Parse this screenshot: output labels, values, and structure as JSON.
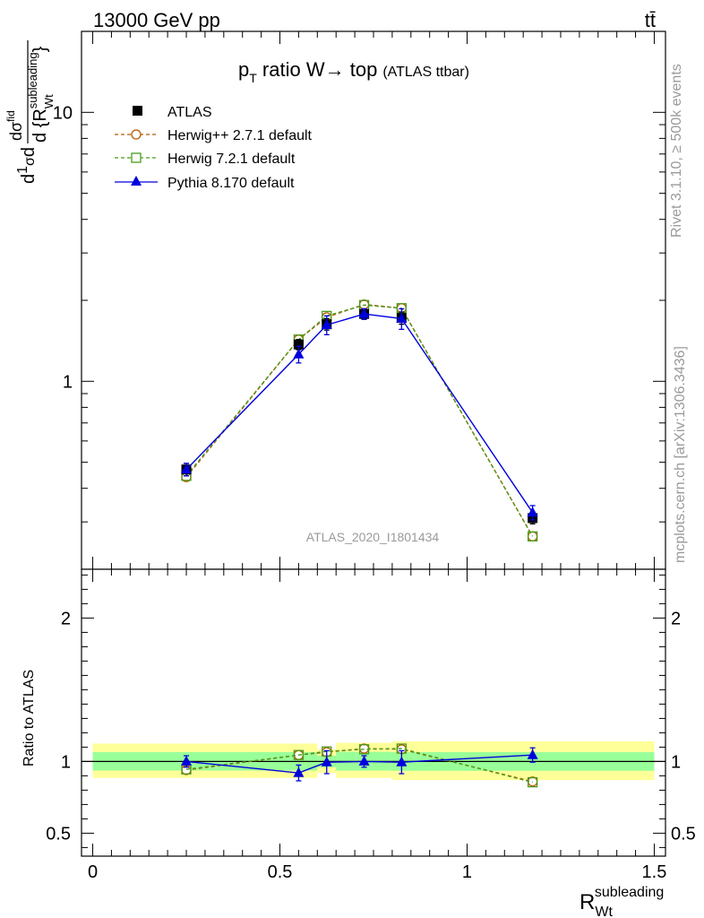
{
  "header": {
    "left": "13000 GeV pp",
    "right": "tt̄"
  },
  "side_labels": {
    "rivet": "Rivet 3.1.10, ≥ 500k events",
    "mcplots": "mcplots.cern.ch [arXiv:1306.3436]"
  },
  "colors": {
    "atlas": "#000000",
    "herwigpp": "#b35900",
    "herwig7": "#4a9a1a",
    "pythia": "#0000dd",
    "band_inner": "#99ff99",
    "band_outer": "#ffff99"
  },
  "chart_data": [
    {
      "type": "line",
      "panel": "main",
      "title": "p_T ratio W → top",
      "title_parts": {
        "p": "p",
        "sub": "T",
        "rest": " ratio W",
        "arrow": "→",
        "top": " top",
        "small": "(ATLAS ttbar)"
      },
      "ylabel": "1/σ dσ/d{R_Wt^subleading}",
      "ylabel_parts": {
        "d1": "d",
        "one": "1",
        "sigma": "σ",
        "d2": "d",
        "dsig": "dσ",
        "sup": "fid",
        "den": "d {R",
        "den_sub": "Wt",
        "den_sup": "subleading",
        "close": "}"
      },
      "xlabel": "R_Wt^subleading",
      "xlabel_parts": {
        "base": "R",
        "sub": "Wt",
        "sup": "subleading"
      },
      "yscale": "log",
      "xlim": [
        -0.03,
        1.53
      ],
      "ylim": [
        0.2,
        20
      ],
      "yticks": [
        1,
        10
      ],
      "ytick_labels": [
        "1",
        "10"
      ],
      "watermark": "ATLAS_2020_I1801434",
      "legend_position": "top-left",
      "x": [
        0.25,
        0.55,
        0.625,
        0.725,
        0.825,
        1.175
      ],
      "series": [
        {
          "name": "ATLAS",
          "marker": "filled-square",
          "values": [
            0.47,
            1.37,
            1.63,
            1.78,
            1.72,
            0.31
          ],
          "errors": [
            0.025,
            0.06,
            0.08,
            0.08,
            0.09,
            0.015
          ]
        },
        {
          "name": "Herwig++ 2.7.1 default",
          "marker": "open-circle",
          "dashed": true,
          "values": [
            0.44,
            1.43,
            1.73,
            1.93,
            1.87,
            0.265
          ],
          "errors": [
            0,
            0,
            0,
            0,
            0,
            0
          ]
        },
        {
          "name": "Herwig 7.2.1 default",
          "marker": "open-square",
          "dashed": true,
          "values": [
            0.445,
            1.43,
            1.75,
            1.92,
            1.87,
            0.265
          ],
          "errors": [
            0,
            0,
            0,
            0,
            0,
            0
          ]
        },
        {
          "name": "Pythia 8.170 default",
          "marker": "filled-triangle",
          "values": [
            0.47,
            1.26,
            1.62,
            1.78,
            1.71,
            0.325
          ],
          "errors": [
            0.025,
            0.09,
            0.13,
            0.08,
            0.15,
            0.02
          ]
        }
      ]
    },
    {
      "type": "line",
      "panel": "ratio",
      "ylabel": "Ratio to ATLAS",
      "yscale": "linear",
      "xlim": [
        -0.03,
        1.53
      ],
      "ylim": [
        0.34,
        2.34
      ],
      "yticks": [
        0.5,
        1,
        2
      ],
      "ytick_labels": [
        "0.5",
        "1",
        "2"
      ],
      "xticks": [
        0,
        0.5,
        1,
        1.5
      ],
      "xtick_labels": [
        "0",
        "0.5",
        "1",
        "1.5"
      ],
      "x": [
        0.25,
        0.55,
        0.625,
        0.725,
        0.825,
        1.175
      ],
      "bands": [
        {
          "x0": 0.0,
          "x1": 0.6,
          "inner": [
            0.937,
            1.065
          ],
          "outer": [
            0.885,
            1.125
          ]
        },
        {
          "x0": 0.6,
          "x1": 0.65,
          "inner": [
            0.96,
            1.04
          ],
          "outer": [
            0.92,
            1.085
          ]
        },
        {
          "x0": 0.65,
          "x1": 0.8,
          "inner": [
            0.937,
            1.067
          ],
          "outer": [
            0.885,
            1.13
          ]
        },
        {
          "x0": 0.8,
          "x1": 1.5,
          "inner": [
            0.935,
            1.065
          ],
          "outer": [
            0.87,
            1.14
          ]
        }
      ],
      "series": [
        {
          "name": "Herwig++ 2.7.1 default",
          "values": [
            0.94,
            1.045,
            1.065,
            1.09,
            1.085,
            0.86
          ],
          "errors": [
            0,
            0,
            0,
            0,
            0,
            0
          ]
        },
        {
          "name": "Herwig 7.2.1 default",
          "values": [
            0.945,
            1.045,
            1.07,
            1.085,
            1.09,
            0.855
          ],
          "errors": [
            0,
            0,
            0,
            0,
            0,
            0
          ]
        },
        {
          "name": "Pythia 8.170 default",
          "values": [
            1.0,
            0.92,
            0.995,
            1.0,
            0.995,
            1.045
          ],
          "errors": [
            0.04,
            0.055,
            0.08,
            0.04,
            0.08,
            0.05
          ]
        }
      ]
    }
  ]
}
